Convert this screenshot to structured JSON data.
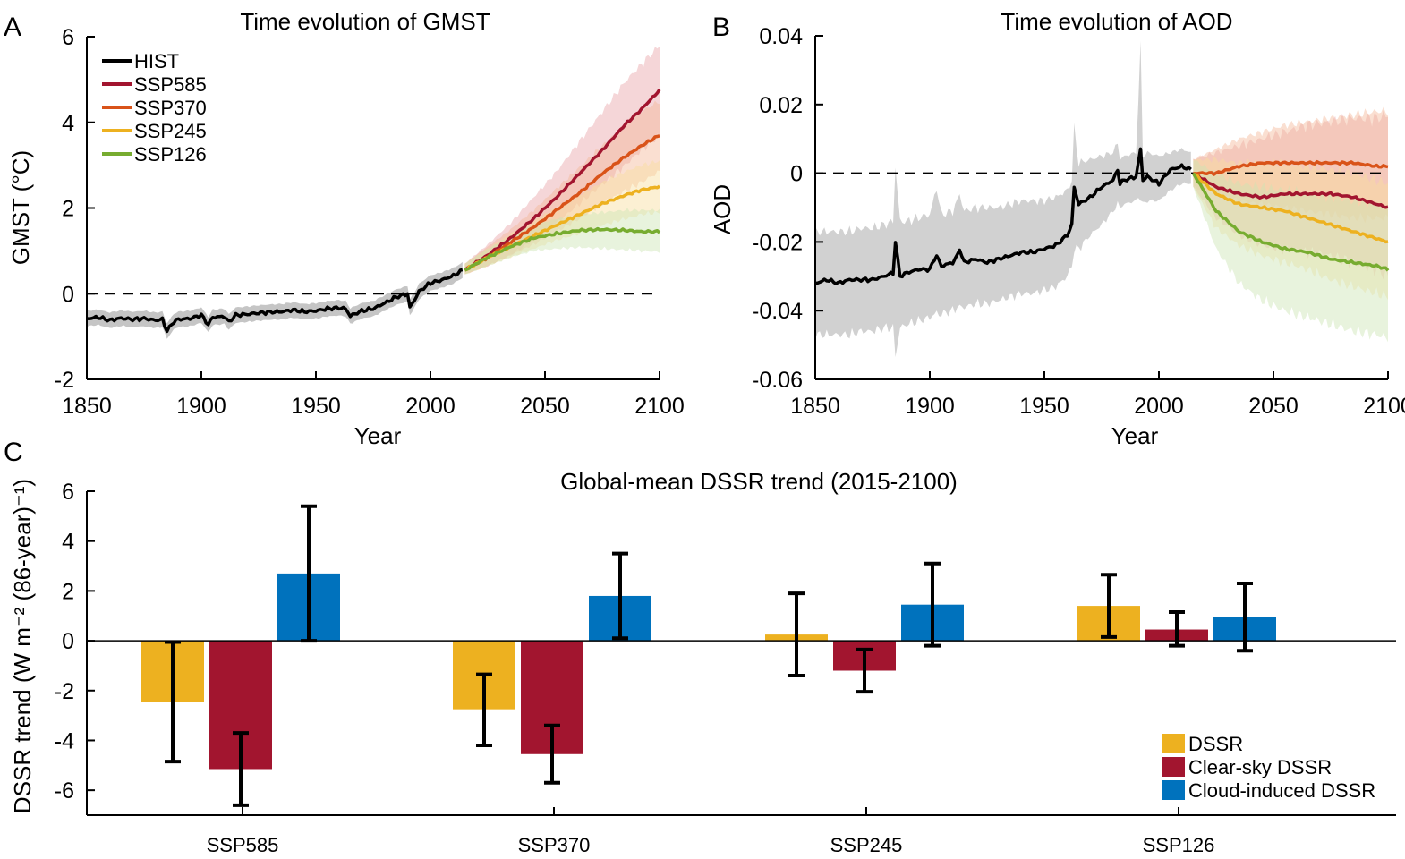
{
  "panels": {
    "a": {
      "letter": "A"
    },
    "b": {
      "letter": "B"
    },
    "c": {
      "letter": "C"
    }
  },
  "chart_data": [
    {
      "type": "line",
      "title": "Time evolution of GMST",
      "xlabel": "Year",
      "ylabel": "GMST (°C)",
      "xlim": [
        1850,
        2100
      ],
      "ylim": [
        -2,
        6
      ],
      "xticks": [
        "1850",
        "1900",
        "1950",
        "2000",
        "2050",
        "2100"
      ],
      "yticks": [
        "-2",
        "0",
        "2",
        "4",
        "6"
      ],
      "yticks_values": [
        -2,
        0,
        2,
        4,
        6
      ],
      "zero_line": "dashed",
      "legend_position": "top-left",
      "series": [
        {
          "name": "HIST",
          "color": "#000000",
          "band_color": "#bfbfbf",
          "x": [
            1850,
            1855,
            1860,
            1865,
            1870,
            1875,
            1880,
            1883,
            1885,
            1888,
            1890,
            1895,
            1900,
            1903,
            1905,
            1910,
            1912,
            1915,
            1920,
            1925,
            1930,
            1935,
            1940,
            1945,
            1950,
            1955,
            1960,
            1963,
            1965,
            1970,
            1975,
            1980,
            1985,
            1990,
            1991,
            1993,
            1995,
            2000,
            2005,
            2010,
            2014
          ],
          "y": [
            -0.58,
            -0.55,
            -0.62,
            -0.57,
            -0.6,
            -0.58,
            -0.62,
            -0.6,
            -0.87,
            -0.65,
            -0.6,
            -0.58,
            -0.5,
            -0.72,
            -0.55,
            -0.53,
            -0.66,
            -0.5,
            -0.48,
            -0.45,
            -0.43,
            -0.42,
            -0.38,
            -0.42,
            -0.4,
            -0.35,
            -0.33,
            -0.35,
            -0.52,
            -0.4,
            -0.35,
            -0.22,
            -0.08,
            0.0,
            -0.32,
            -0.15,
            0.05,
            0.25,
            0.32,
            0.42,
            0.55
          ],
          "band": 0.18
        },
        {
          "name": "SSP585",
          "color": "#a2152f",
          "band_color": "#e8a4a9",
          "x": [
            2015,
            2025,
            2035,
            2045,
            2055,
            2065,
            2075,
            2085,
            2092,
            2100
          ],
          "y": [
            0.55,
            0.9,
            1.3,
            1.75,
            2.25,
            2.8,
            3.35,
            3.95,
            4.3,
            4.75
          ],
          "band_lo": [
            0.45,
            0.65,
            0.9,
            1.25,
            1.65,
            2.1,
            2.55,
            3.0,
            3.35,
            3.7
          ],
          "band_hi": [
            0.7,
            1.15,
            1.65,
            2.25,
            2.85,
            3.55,
            4.25,
            4.95,
            5.35,
            5.8
          ]
        },
        {
          "name": "SSP370",
          "color": "#d95319",
          "band_color": "#f3b89a",
          "x": [
            2015,
            2025,
            2035,
            2045,
            2055,
            2065,
            2075,
            2085,
            2092,
            2100
          ],
          "y": [
            0.55,
            0.85,
            1.2,
            1.55,
            1.95,
            2.35,
            2.8,
            3.2,
            3.45,
            3.7
          ],
          "band_lo": [
            0.45,
            0.65,
            0.9,
            1.15,
            1.45,
            1.75,
            2.1,
            2.4,
            2.6,
            2.85
          ],
          "band_hi": [
            0.7,
            1.1,
            1.5,
            1.95,
            2.45,
            2.95,
            3.45,
            3.95,
            4.25,
            4.5
          ]
        },
        {
          "name": "SSP245",
          "color": "#edb120",
          "band_color": "#f8dd9e",
          "x": [
            2015,
            2025,
            2035,
            2045,
            2055,
            2065,
            2075,
            2085,
            2092,
            2100
          ],
          "y": [
            0.55,
            0.85,
            1.1,
            1.35,
            1.6,
            1.85,
            2.1,
            2.3,
            2.42,
            2.5
          ],
          "band_lo": [
            0.45,
            0.65,
            0.85,
            1.05,
            1.25,
            1.4,
            1.6,
            1.75,
            1.85,
            1.9
          ],
          "band_hi": [
            0.7,
            1.05,
            1.4,
            1.7,
            2.0,
            2.3,
            2.6,
            2.85,
            3.0,
            3.1
          ]
        },
        {
          "name": "SSP126",
          "color": "#77ac30",
          "band_color": "#cde4b3",
          "x": [
            2015,
            2025,
            2035,
            2045,
            2055,
            2065,
            2075,
            2085,
            2092,
            2100
          ],
          "y": [
            0.55,
            0.85,
            1.1,
            1.3,
            1.4,
            1.48,
            1.5,
            1.48,
            1.45,
            1.45
          ],
          "band_lo": [
            0.45,
            0.65,
            0.85,
            1.0,
            1.05,
            1.08,
            1.05,
            1.02,
            1.0,
            0.98
          ],
          "band_hi": [
            0.7,
            1.05,
            1.35,
            1.6,
            1.75,
            1.85,
            1.9,
            1.95,
            1.95,
            1.95
          ]
        }
      ]
    },
    {
      "type": "line",
      "title": "Time evolution of AOD",
      "xlabel": "Year",
      "ylabel": "AOD",
      "xlim": [
        1850,
        2100
      ],
      "ylim": [
        -0.06,
        0.04
      ],
      "xticks": [
        "1850",
        "1900",
        "1950",
        "2000",
        "2050",
        "2100"
      ],
      "yticks": [
        "-0.06",
        "-0.04",
        "-0.02",
        "0",
        "0.02",
        "0.04"
      ],
      "yticks_values": [
        -0.06,
        -0.04,
        -0.02,
        0,
        0.02,
        0.04
      ],
      "zero_line": "dashed",
      "series": [
        {
          "name": "HIST",
          "color": "#000000",
          "band_color": "#cccccc",
          "x": [
            1850,
            1855,
            1860,
            1865,
            1870,
            1875,
            1880,
            1884,
            1885,
            1887,
            1890,
            1895,
            1900,
            1902,
            1903,
            1905,
            1910,
            1912,
            1913,
            1915,
            1920,
            1925,
            1930,
            1935,
            1940,
            1945,
            1950,
            1955,
            1960,
            1962,
            1963,
            1965,
            1970,
            1975,
            1980,
            1982,
            1983,
            1985,
            1990,
            1992,
            1993,
            1995,
            2000,
            2005,
            2010,
            2014
          ],
          "y": [
            -0.032,
            -0.031,
            -0.032,
            -0.031,
            -0.031,
            -0.031,
            -0.03,
            -0.029,
            -0.02,
            -0.03,
            -0.029,
            -0.028,
            -0.028,
            -0.025,
            -0.024,
            -0.027,
            -0.026,
            -0.024,
            -0.022,
            -0.026,
            -0.025,
            -0.026,
            -0.025,
            -0.024,
            -0.023,
            -0.023,
            -0.022,
            -0.021,
            -0.018,
            -0.015,
            -0.004,
            -0.009,
            -0.007,
            -0.004,
            -0.002,
            0.001,
            -0.003,
            -0.002,
            -0.001,
            0.007,
            -0.002,
            -0.001,
            -0.003,
            0.001,
            0.002,
            0.001
          ],
          "band_lo": [
            -0.047,
            -0.047,
            -0.047,
            -0.047,
            -0.046,
            -0.046,
            -0.045,
            -0.045,
            -0.053,
            -0.045,
            -0.044,
            -0.043,
            -0.042,
            -0.041,
            -0.041,
            -0.041,
            -0.04,
            -0.039,
            -0.039,
            -0.039,
            -0.038,
            -0.038,
            -0.037,
            -0.036,
            -0.035,
            -0.035,
            -0.034,
            -0.033,
            -0.03,
            -0.027,
            -0.022,
            -0.022,
            -0.018,
            -0.015,
            -0.011,
            -0.009,
            -0.01,
            -0.009,
            -0.008,
            -0.006,
            -0.009,
            -0.008,
            -0.008,
            -0.005,
            -0.003,
            -0.003
          ],
          "band_hi": [
            -0.017,
            -0.017,
            -0.017,
            -0.017,
            -0.016,
            -0.016,
            -0.015,
            -0.014,
            0.002,
            -0.014,
            -0.014,
            -0.013,
            -0.012,
            -0.007,
            -0.004,
            -0.012,
            -0.011,
            -0.008,
            -0.006,
            -0.011,
            -0.01,
            -0.01,
            -0.01,
            -0.009,
            -0.008,
            -0.008,
            -0.008,
            -0.007,
            -0.005,
            -0.002,
            0.013,
            0.003,
            0.004,
            0.005,
            0.006,
            0.009,
            0.004,
            0.005,
            0.006,
            0.036,
            0.005,
            0.006,
            0.005,
            0.006,
            0.007,
            0.006
          ]
        },
        {
          "name": "SSP585",
          "color": "#a2152f",
          "band_color": "#e8a4a9",
          "x": [
            2015,
            2025,
            2035,
            2045,
            2055,
            2065,
            2075,
            2085,
            2095,
            2100
          ],
          "y": [
            0.0,
            -0.004,
            -0.006,
            -0.007,
            -0.006,
            -0.006,
            -0.006,
            -0.007,
            -0.009,
            -0.01
          ],
          "band_lo": [
            -0.004,
            -0.013,
            -0.018,
            -0.021,
            -0.022,
            -0.023,
            -0.024,
            -0.026,
            -0.028,
            -0.03
          ],
          "band_hi": [
            0.004,
            0.006,
            0.008,
            0.01,
            0.012,
            0.014,
            0.015,
            0.016,
            0.016,
            0.017
          ]
        },
        {
          "name": "SSP370",
          "color": "#d95319",
          "band_color": "#f3b89a",
          "x": [
            2015,
            2025,
            2035,
            2045,
            2055,
            2065,
            2075,
            2085,
            2095,
            2100
          ],
          "y": [
            0.0,
            0.0,
            0.002,
            0.003,
            0.003,
            0.003,
            0.003,
            0.003,
            0.002,
            0.002
          ],
          "band_lo": [
            -0.004,
            -0.006,
            -0.008,
            -0.009,
            -0.01,
            -0.011,
            -0.012,
            -0.013,
            -0.013,
            -0.013
          ],
          "band_hi": [
            0.004,
            0.007,
            0.01,
            0.012,
            0.014,
            0.015,
            0.016,
            0.017,
            0.018,
            0.018
          ]
        },
        {
          "name": "SSP245",
          "color": "#edb120",
          "band_color": "#f8dd9e",
          "x": [
            2015,
            2025,
            2035,
            2045,
            2055,
            2065,
            2075,
            2085,
            2095,
            2100
          ],
          "y": [
            0.0,
            -0.006,
            -0.009,
            -0.01,
            -0.011,
            -0.013,
            -0.015,
            -0.017,
            -0.019,
            -0.02
          ],
          "band_lo": [
            -0.004,
            -0.016,
            -0.021,
            -0.024,
            -0.026,
            -0.028,
            -0.031,
            -0.033,
            -0.035,
            -0.036
          ],
          "band_hi": [
            0.004,
            0.004,
            0.003,
            0.003,
            0.003,
            0.002,
            0.001,
            0.0,
            -0.002,
            -0.003
          ]
        },
        {
          "name": "SSP126",
          "color": "#77ac30",
          "band_color": "#cde4b3",
          "x": [
            2015,
            2025,
            2035,
            2045,
            2055,
            2065,
            2075,
            2085,
            2095,
            2100
          ],
          "y": [
            0.0,
            -0.011,
            -0.017,
            -0.02,
            -0.022,
            -0.023,
            -0.025,
            -0.026,
            -0.027,
            -0.028
          ],
          "band_lo": [
            -0.004,
            -0.022,
            -0.032,
            -0.037,
            -0.04,
            -0.042,
            -0.044,
            -0.046,
            -0.047,
            -0.048
          ],
          "band_hi": [
            0.004,
            0.0,
            -0.003,
            -0.004,
            -0.005,
            -0.006,
            -0.007,
            -0.008,
            -0.009,
            -0.01
          ]
        }
      ]
    },
    {
      "type": "bar",
      "title": "Global-mean DSSR trend (2015-2100)",
      "ylabel": "DSSR trend (W m⁻² (86-year)⁻¹)",
      "ylim": [
        -7,
        6
      ],
      "yticks": [
        "-6",
        "-4",
        "-2",
        "0",
        "2",
        "4",
        "6"
      ],
      "yticks_values": [
        -6,
        -4,
        -2,
        0,
        2,
        4,
        6
      ],
      "categories": [
        "SSP585",
        "SSP370",
        "SSP245",
        "SSP126"
      ],
      "legend_position": "bottom-right",
      "series": [
        {
          "name": "DSSR",
          "color": "#edb120",
          "values": [
            -2.45,
            -2.75,
            0.25,
            1.4
          ],
          "err_lo": [
            -4.85,
            -4.2,
            -1.4,
            0.15
          ],
          "err_hi": [
            -0.05,
            -1.35,
            1.9,
            2.65
          ]
        },
        {
          "name": "Clear-sky DSSR",
          "color": "#a2152f",
          "values": [
            -5.15,
            -4.55,
            -1.2,
            0.45
          ],
          "err_lo": [
            -6.6,
            -5.7,
            -2.05,
            -0.2
          ],
          "err_hi": [
            -3.7,
            -3.4,
            -0.35,
            1.15
          ]
        },
        {
          "name": "Cloud-induced DSSR",
          "color": "#0072bd",
          "values": [
            2.7,
            1.8,
            1.45,
            0.95
          ],
          "err_lo": [
            0.0,
            0.1,
            -0.2,
            -0.4
          ],
          "err_hi": [
            5.4,
            3.5,
            3.1,
            2.3
          ]
        }
      ]
    }
  ]
}
